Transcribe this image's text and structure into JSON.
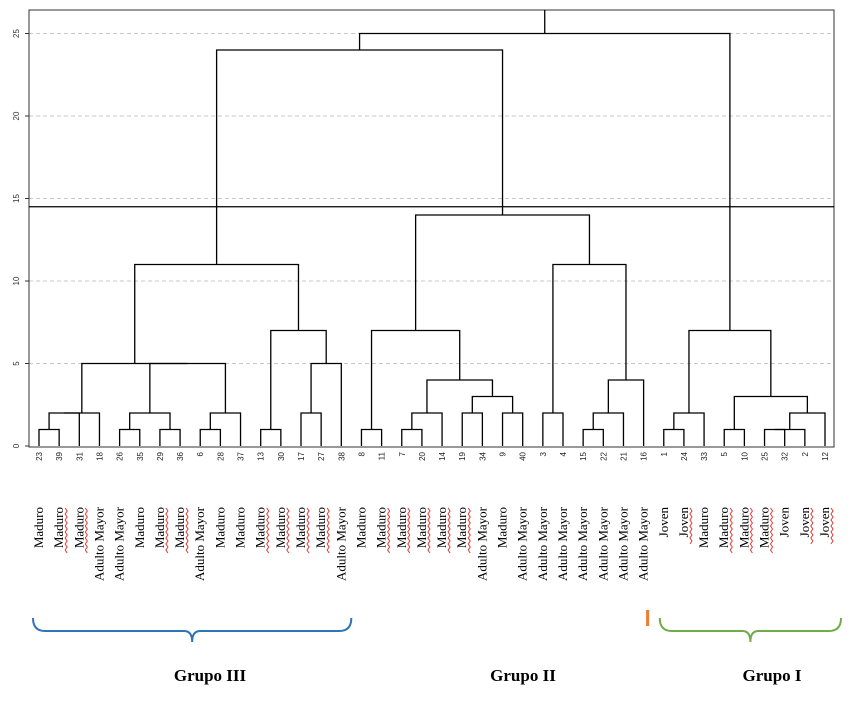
{
  "chart_data": {
    "type": "dendrogram",
    "y_ticks": [
      "0",
      "5",
      "10",
      "15",
      "20",
      "25"
    ],
    "ylim": [
      0,
      25
    ],
    "grid": "dashed-horizontal",
    "cut_height": 14.5,
    "leaves": [
      {
        "id": "23",
        "label": "Maduro",
        "underline": false
      },
      {
        "id": "39",
        "label": "Maduro",
        "underline": true
      },
      {
        "id": "31",
        "label": "Maduro",
        "underline": true
      },
      {
        "id": "18",
        "label": "Adulto Mayor",
        "underline": false
      },
      {
        "id": "26",
        "label": "Adulto Mayor",
        "underline": false
      },
      {
        "id": "35",
        "label": "Maduro",
        "underline": false
      },
      {
        "id": "29",
        "label": "Maduro",
        "underline": true
      },
      {
        "id": "36",
        "label": "Maduro",
        "underline": true
      },
      {
        "id": "6",
        "label": "Adulto Mayor",
        "underline": false
      },
      {
        "id": "28",
        "label": "Maduro",
        "underline": false
      },
      {
        "id": "37",
        "label": "Maduro",
        "underline": false
      },
      {
        "id": "13",
        "label": "Maduro",
        "underline": true
      },
      {
        "id": "30",
        "label": "Maduro",
        "underline": true
      },
      {
        "id": "17",
        "label": "Maduro",
        "underline": true
      },
      {
        "id": "27",
        "label": "Maduro",
        "underline": true
      },
      {
        "id": "38",
        "label": "Adulto Mayor",
        "underline": false
      },
      {
        "id": "8",
        "label": "Maduro",
        "underline": false
      },
      {
        "id": "11",
        "label": "Maduro",
        "underline": true
      },
      {
        "id": "7",
        "label": "Maduro",
        "underline": true
      },
      {
        "id": "20",
        "label": "Maduro",
        "underline": true
      },
      {
        "id": "14",
        "label": "Maduro",
        "underline": true
      },
      {
        "id": "19",
        "label": "Maduro",
        "underline": true
      },
      {
        "id": "34",
        "label": "Adulto Mayor",
        "underline": false
      },
      {
        "id": "9",
        "label": "Maduro",
        "underline": false
      },
      {
        "id": "40",
        "label": "Adulto Mayor",
        "underline": false
      },
      {
        "id": "3",
        "label": "Adulto Mayor",
        "underline": false
      },
      {
        "id": "4",
        "label": "Adulto Mayor",
        "underline": false
      },
      {
        "id": "15",
        "label": "Adulto Mayor",
        "underline": false
      },
      {
        "id": "22",
        "label": "Adulto Mayor",
        "underline": false
      },
      {
        "id": "21",
        "label": "Adulto Mayor",
        "underline": false
      },
      {
        "id": "16",
        "label": "Adulto Mayor",
        "underline": false
      },
      {
        "id": "1",
        "label": "Joven",
        "underline": false
      },
      {
        "id": "24",
        "label": "Joven",
        "underline": true
      },
      {
        "id": "33",
        "label": "Maduro",
        "underline": false
      },
      {
        "id": "5",
        "label": "Maduro",
        "underline": true
      },
      {
        "id": "10",
        "label": "Maduro",
        "underline": true
      },
      {
        "id": "25",
        "label": "Maduro",
        "underline": true
      },
      {
        "id": "32",
        "label": "Joven",
        "underline": false
      },
      {
        "id": "2",
        "label": "Joven",
        "underline": true
      },
      {
        "id": "12",
        "label": "Joven",
        "underline": true
      }
    ],
    "merges": [
      {
        "id": "a1",
        "l": "23",
        "r": "39",
        "h": 1
      },
      {
        "id": "a2",
        "l": "a1",
        "r": "31",
        "h": 2
      },
      {
        "id": "a3",
        "l": "a2",
        "r": "18",
        "h": 2
      },
      {
        "id": "b1",
        "l": "26",
        "r": "35",
        "h": 1
      },
      {
        "id": "b2",
        "l": "29",
        "r": "36",
        "h": 1
      },
      {
        "id": "b3",
        "l": "b1",
        "r": "b2",
        "h": 2
      },
      {
        "id": "c1",
        "l": "6",
        "r": "28",
        "h": 1
      },
      {
        "id": "c2",
        "l": "c1",
        "r": "37",
        "h": 2
      },
      {
        "id": "d1",
        "l": "b3",
        "r": "c2",
        "h": 5
      },
      {
        "id": "e1",
        "l": "a3",
        "r": "d1",
        "h": 5
      },
      {
        "id": "f1",
        "l": "13",
        "r": "30",
        "h": 1
      },
      {
        "id": "f2",
        "l": "17",
        "r": "27",
        "h": 2
      },
      {
        "id": "f3",
        "l": "f2",
        "r": "38",
        "h": 5
      },
      {
        "id": "f4",
        "l": "f1",
        "r": "f3",
        "h": 7
      },
      {
        "id": "g1",
        "l": "e1",
        "r": "f4",
        "h": 11
      },
      {
        "id": "h1",
        "l": "8",
        "r": "11",
        "h": 1
      },
      {
        "id": "h2",
        "l": "7",
        "r": "20",
        "h": 1
      },
      {
        "id": "h3",
        "l": "h2",
        "r": "14",
        "h": 2
      },
      {
        "id": "h4",
        "l": "19",
        "r": "34",
        "h": 2
      },
      {
        "id": "h5",
        "l": "9",
        "r": "40",
        "h": 2
      },
      {
        "id": "h6",
        "l": "h4",
        "r": "h5",
        "h": 3
      },
      {
        "id": "h7",
        "l": "h3",
        "r": "h6",
        "h": 4
      },
      {
        "id": "h8",
        "l": "h1",
        "r": "h7",
        "h": 7
      },
      {
        "id": "i1",
        "l": "3",
        "r": "4",
        "h": 2
      },
      {
        "id": "i2",
        "l": "15",
        "r": "22",
        "h": 1
      },
      {
        "id": "i3",
        "l": "i2",
        "r": "21",
        "h": 2
      },
      {
        "id": "i4",
        "l": "i3",
        "r": "16",
        "h": 4
      },
      {
        "id": "i5",
        "l": "i1",
        "r": "i4",
        "h": 11
      },
      {
        "id": "j1",
        "l": "h8",
        "r": "i5",
        "h": 14
      },
      {
        "id": "k1",
        "l": "g1",
        "r": "j1",
        "h": 24
      },
      {
        "id": "l1",
        "l": "1",
        "r": "24",
        "h": 1
      },
      {
        "id": "l2",
        "l": "l1",
        "r": "33",
        "h": 2
      },
      {
        "id": "m1",
        "l": "5",
        "r": "10",
        "h": 1
      },
      {
        "id": "m2",
        "l": "25",
        "r": "32",
        "h": 1
      },
      {
        "id": "m3",
        "l": "m2",
        "r": "2",
        "h": 1
      },
      {
        "id": "m4",
        "l": "m3",
        "r": "12",
        "h": 2
      },
      {
        "id": "m5",
        "l": "m1",
        "r": "m4",
        "h": 3
      },
      {
        "id": "n1",
        "l": "l2",
        "r": "m5",
        "h": 7
      },
      {
        "id": "root",
        "l": "k1",
        "r": "n1",
        "h": 25
      }
    ],
    "groups": [
      {
        "name": "Grupo III",
        "color": "#2e75b6",
        "from": 0,
        "to": 15,
        "label_shown": true
      },
      {
        "name": "Grupo II",
        "color": "#ed7d31",
        "from": 30,
        "to": 30,
        "label_shown": true
      },
      {
        "name": "Grupo I",
        "color": "#70ad47",
        "from": 31,
        "to": 39,
        "label_shown": true
      }
    ],
    "underline_color": "#e53935"
  }
}
